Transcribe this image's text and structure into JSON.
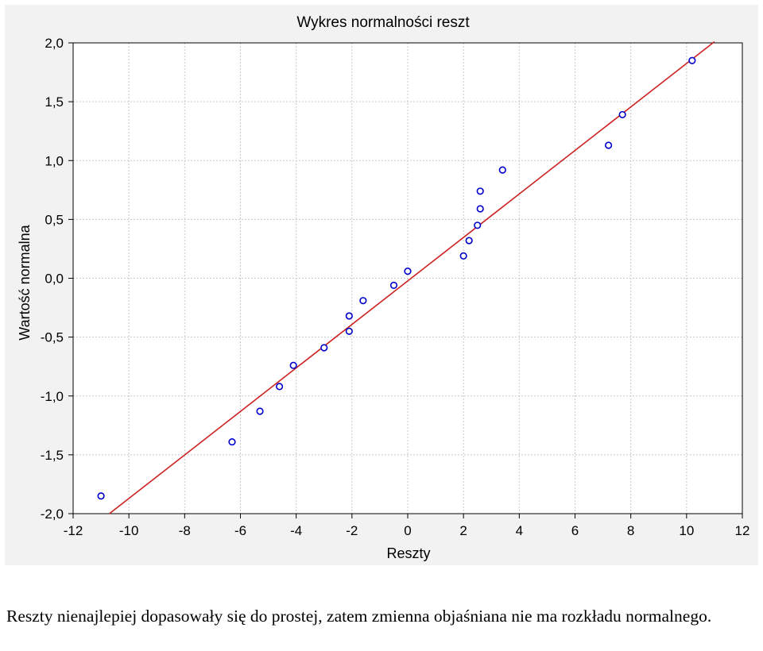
{
  "chart_data": {
    "type": "scatter",
    "title": "Wykres normalności reszt",
    "xlabel": "Reszty",
    "ylabel": "Wartość normalna",
    "xlim": [
      -12,
      12
    ],
    "ylim": [
      -2.0,
      2.0
    ],
    "x_ticks": [
      -12,
      -10,
      -8,
      -6,
      -4,
      -2,
      0,
      2,
      4,
      6,
      8,
      10,
      12
    ],
    "y_ticks": [
      2.0,
      1.5,
      1.0,
      0.5,
      0.0,
      -0.5,
      -1.0,
      -1.5,
      -2.0
    ],
    "x_tick_labels": [
      "-12",
      "-10",
      "-8",
      "-6",
      "-4",
      "-2",
      "0",
      "2",
      "4",
      "6",
      "8",
      "10",
      "12"
    ],
    "y_tick_labels": [
      "2,0",
      "1,5",
      "1,0",
      "0,5",
      "0,0",
      "-0,5",
      "-1,0",
      "-1,5",
      "-2,0"
    ],
    "grid": true,
    "points": [
      {
        "x": -11.0,
        "y": -1.85
      },
      {
        "x": -6.3,
        "y": -1.39
      },
      {
        "x": -5.3,
        "y": -1.13
      },
      {
        "x": -4.6,
        "y": -0.92
      },
      {
        "x": -4.1,
        "y": -0.74
      },
      {
        "x": -3.0,
        "y": -0.59
      },
      {
        "x": -2.1,
        "y": -0.45
      },
      {
        "x": -2.1,
        "y": -0.32
      },
      {
        "x": -1.6,
        "y": -0.19
      },
      {
        "x": -0.5,
        "y": -0.06
      },
      {
        "x": 0.0,
        "y": 0.06
      },
      {
        "x": 2.0,
        "y": 0.19
      },
      {
        "x": 2.2,
        "y": 0.32
      },
      {
        "x": 2.5,
        "y": 0.45
      },
      {
        "x": 2.6,
        "y": 0.59
      },
      {
        "x": 2.6,
        "y": 0.74
      },
      {
        "x": 3.4,
        "y": 0.92
      },
      {
        "x": 7.2,
        "y": 1.13
      },
      {
        "x": 7.7,
        "y": 1.39
      },
      {
        "x": 10.2,
        "y": 1.85
      }
    ],
    "reference_line": {
      "x": [
        -10.7,
        11.0
      ],
      "y": [
        -2.0,
        2.01
      ]
    },
    "colors": {
      "points": "#0000cc",
      "line": "#cc2222",
      "grid": "#c8c8c8",
      "panel": "#f2f2f2",
      "plot": "#ffffff"
    }
  },
  "caption": "Reszty nienajlepiej dopasowały się do prostej, zatem zmienna objaśniana nie ma rozkładu normalnego."
}
